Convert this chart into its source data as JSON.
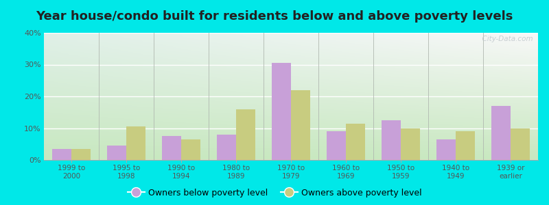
{
  "title": "Year house/condo built for residents below and above poverty levels",
  "categories": [
    "1999 to\n2000",
    "1995 to\n1998",
    "1990 to\n1994",
    "1980 to\n1989",
    "1970 to\n1979",
    "1960 to\n1969",
    "1950 to\n1959",
    "1940 to\n1949",
    "1939 or\nearlier"
  ],
  "below_poverty": [
    3.5,
    4.5,
    7.5,
    8.0,
    30.5,
    9.0,
    12.5,
    6.5,
    17.0
  ],
  "above_poverty": [
    3.5,
    10.5,
    6.5,
    16.0,
    22.0,
    11.5,
    10.0,
    9.0,
    10.0
  ],
  "below_color": "#c8a0d8",
  "above_color": "#c8cc80",
  "ylim": [
    0,
    40
  ],
  "yticks": [
    0,
    10,
    20,
    30,
    40
  ],
  "bg_topleft": "#d8ede0",
  "bg_topright": "#f0f0f8",
  "bg_bottomleft": "#c8e8c0",
  "bg_bottomright": "#e8eef0",
  "outer_bg": "#00e8e8",
  "title_fontsize": 13,
  "legend_below_label": "Owners below poverty level",
  "legend_above_label": "Owners above poverty level",
  "bar_width": 0.35,
  "watermark": "  City-Data.com"
}
